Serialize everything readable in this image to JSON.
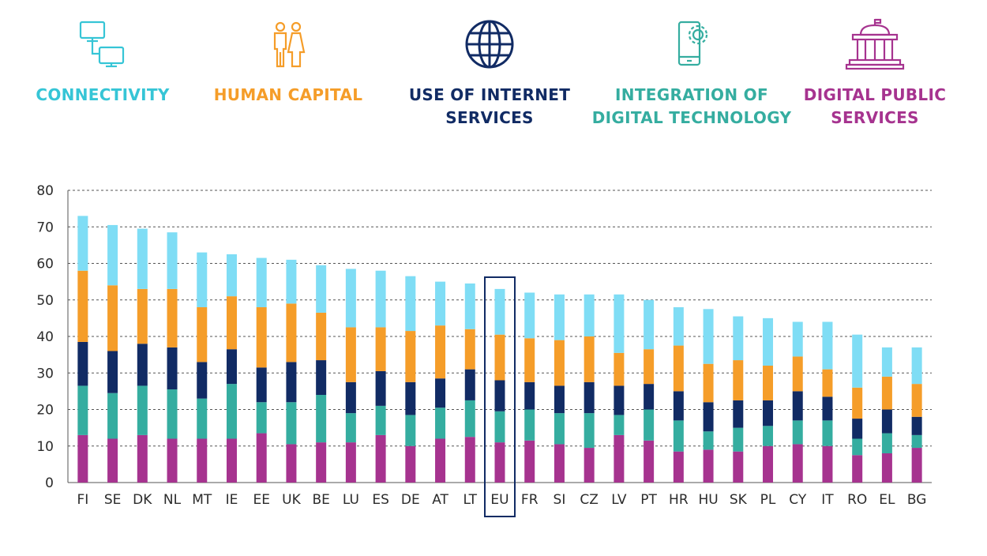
{
  "chart_data": {
    "type": "bar",
    "stacked": true,
    "title": "",
    "xlabel": "",
    "ylabel": "",
    "ylim": [
      0,
      80
    ],
    "yticks": [
      0,
      10,
      20,
      30,
      40,
      50,
      60,
      70,
      80
    ],
    "grid": true,
    "highlight": "EU",
    "categories": [
      "FI",
      "SE",
      "DK",
      "NL",
      "MT",
      "IE",
      "EE",
      "UK",
      "BE",
      "LU",
      "ES",
      "DE",
      "AT",
      "LT",
      "EU",
      "FR",
      "SI",
      "CZ",
      "LV",
      "PT",
      "HR",
      "HU",
      "SK",
      "PL",
      "CY",
      "IT",
      "RO",
      "EL",
      "BG"
    ],
    "series": [
      {
        "name": "DIGITAL PUBLIC SERVICES",
        "color": "#A6338F",
        "values": [
          13,
          12,
          13,
          12,
          12,
          12,
          13.5,
          10.5,
          11,
          11,
          13,
          10,
          12,
          12.5,
          11,
          11.5,
          10.5,
          9.5,
          13,
          11.5,
          8.5,
          9,
          8.5,
          10,
          10.5,
          10,
          7.5,
          8,
          9.5
        ]
      },
      {
        "name": "INTEGRATION OF DIGITAL TECHNOLOGY",
        "color": "#35ADA0",
        "values": [
          13.5,
          12.5,
          13.5,
          13.5,
          11,
          15,
          8.5,
          11.5,
          13,
          8,
          8,
          8.5,
          8.5,
          10,
          8.5,
          8.5,
          8.5,
          9.5,
          5.5,
          8.5,
          8.5,
          5,
          6.5,
          5.5,
          6.5,
          7,
          4.5,
          5.5,
          3.5
        ]
      },
      {
        "name": "USE OF INTERNET SERVICES",
        "color": "#112B64",
        "values": [
          12,
          11.5,
          11.5,
          11.5,
          10,
          9.5,
          9.5,
          11,
          9.5,
          8.5,
          9.5,
          9,
          8,
          8.5,
          8.5,
          7.5,
          7.5,
          8.5,
          8,
          7,
          8,
          8,
          7.5,
          7,
          8,
          6.5,
          5.5,
          6.5,
          5
        ]
      },
      {
        "name": "HUMAN CAPITAL",
        "color": "#F59D29",
        "values": [
          19.5,
          18,
          15,
          16,
          15,
          14.5,
          16.5,
          16,
          13,
          15,
          12,
          14,
          14.5,
          11,
          12.5,
          12,
          12.5,
          12.5,
          9,
          9.5,
          12.5,
          10.5,
          11,
          9.5,
          9.5,
          7.5,
          8.5,
          9,
          9
        ]
      },
      {
        "name": "CONNECTIVITY",
        "color": "#7FDDF5",
        "values": [
          15,
          16.5,
          16.5,
          15.5,
          15,
          11.5,
          13.5,
          12,
          13,
          16,
          15.5,
          15,
          12,
          12.5,
          12.5,
          12.5,
          12.5,
          11.5,
          16,
          13.5,
          10.5,
          15,
          12,
          13,
          9.5,
          13,
          14.5,
          8,
          10
        ]
      }
    ]
  },
  "legend": [
    {
      "label": "CONNECTIVITY",
      "color": "#36C5D6",
      "icon": "computer-network-icon"
    },
    {
      "label": "HUMAN CAPITAL",
      "color": "#F59D29",
      "icon": "people-icon"
    },
    {
      "label": "USE OF INTERNET SERVICES",
      "color": "#112B64",
      "icon": "globe-icon"
    },
    {
      "label": "INTEGRATION OF DIGITAL TECHNOLOGY",
      "color": "#35ADA0",
      "icon": "phone-gear-icon"
    },
    {
      "label": "DIGITAL PUBLIC SERVICES",
      "color": "#A6338F",
      "icon": "government-building-icon"
    }
  ]
}
